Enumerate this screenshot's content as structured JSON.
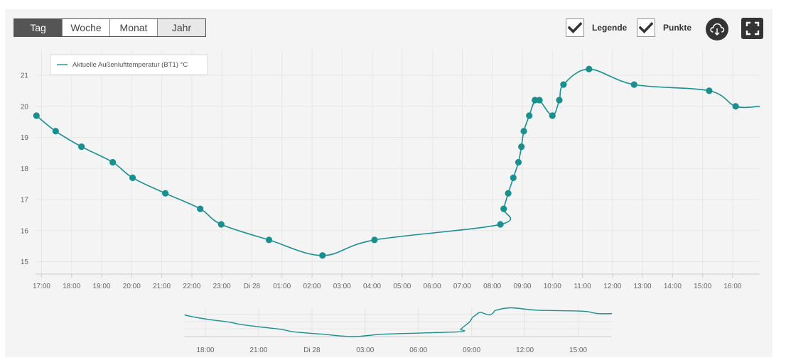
{
  "toolbar": {
    "ranges": [
      "Tag",
      "Woche",
      "Monat",
      "Jahr"
    ],
    "active_range": "Tag",
    "legend_label": "Legende",
    "points_label": "Punkte",
    "download_icon": "cloud-download-icon",
    "fullscreen_icon": "fullscreen-icon"
  },
  "colors": {
    "series": "#1a8f8f",
    "grid": "#e6e6e6",
    "active_button": "#555555"
  },
  "chart_data": {
    "type": "line",
    "title": "",
    "xlabel": "",
    "ylabel": "",
    "ylim": [
      14.6,
      21.6
    ],
    "yticks": [
      15,
      16,
      17,
      18,
      19,
      20,
      21
    ],
    "x_tick_labels": [
      "17:00",
      "18:00",
      "19:00",
      "20:00",
      "21:00",
      "22:00",
      "23:00",
      "Di 28",
      "01:00",
      "02:00",
      "03:00",
      "04:00",
      "05:00",
      "06:00",
      "07:00",
      "08:00",
      "09:00",
      "10:00",
      "11:00",
      "12:00",
      "13:00",
      "14:00",
      "15:00",
      "16:00"
    ],
    "x_tick_hours": [
      17,
      18,
      19,
      20,
      21,
      22,
      23,
      24,
      25,
      26,
      27,
      28,
      29,
      30,
      31,
      32,
      33,
      34,
      35,
      36,
      37,
      38,
      39,
      40
    ],
    "x_range_hours": [
      16.8,
      40.9
    ],
    "grid": true,
    "legend": {
      "position": "top-left",
      "entries": [
        "Aktuelle Außenlufttemperatur (BT1) °C"
      ]
    },
    "show_points": true,
    "series": [
      {
        "name": "Aktuelle Außenlufttemperatur (BT1) °C",
        "hours": [
          16.83,
          17.47,
          18.33,
          19.37,
          20.03,
          21.12,
          22.28,
          22.98,
          24.57,
          26.35,
          28.08,
          32.27,
          32.38,
          32.53,
          32.7,
          32.87,
          32.97,
          33.05,
          33.23,
          33.42,
          33.57,
          34.0,
          34.23,
          34.37,
          35.22,
          36.72,
          39.22,
          40.1,
          40.9
        ],
        "values": [
          19.7,
          19.2,
          18.7,
          18.2,
          17.7,
          17.2,
          16.7,
          16.2,
          15.7,
          15.2,
          15.7,
          16.2,
          16.7,
          17.2,
          17.7,
          18.2,
          18.7,
          19.2,
          19.7,
          20.2,
          20.2,
          19.7,
          20.2,
          20.7,
          21.2,
          20.7,
          20.5,
          20.0,
          20.0
        ],
        "points": [
          true,
          true,
          true,
          true,
          true,
          true,
          true,
          true,
          true,
          true,
          true,
          true,
          true,
          true,
          true,
          true,
          true,
          true,
          true,
          true,
          true,
          true,
          true,
          true,
          true,
          true,
          true,
          true,
          false
        ]
      }
    ],
    "navigator": {
      "x_tick_labels": [
        "18:00",
        "21:00",
        "Di 28",
        "03:00",
        "06:00",
        "09:00",
        "12:00",
        "15:00"
      ],
      "x_tick_hours": [
        18,
        21,
        24,
        27,
        30,
        33,
        36,
        39
      ]
    }
  }
}
